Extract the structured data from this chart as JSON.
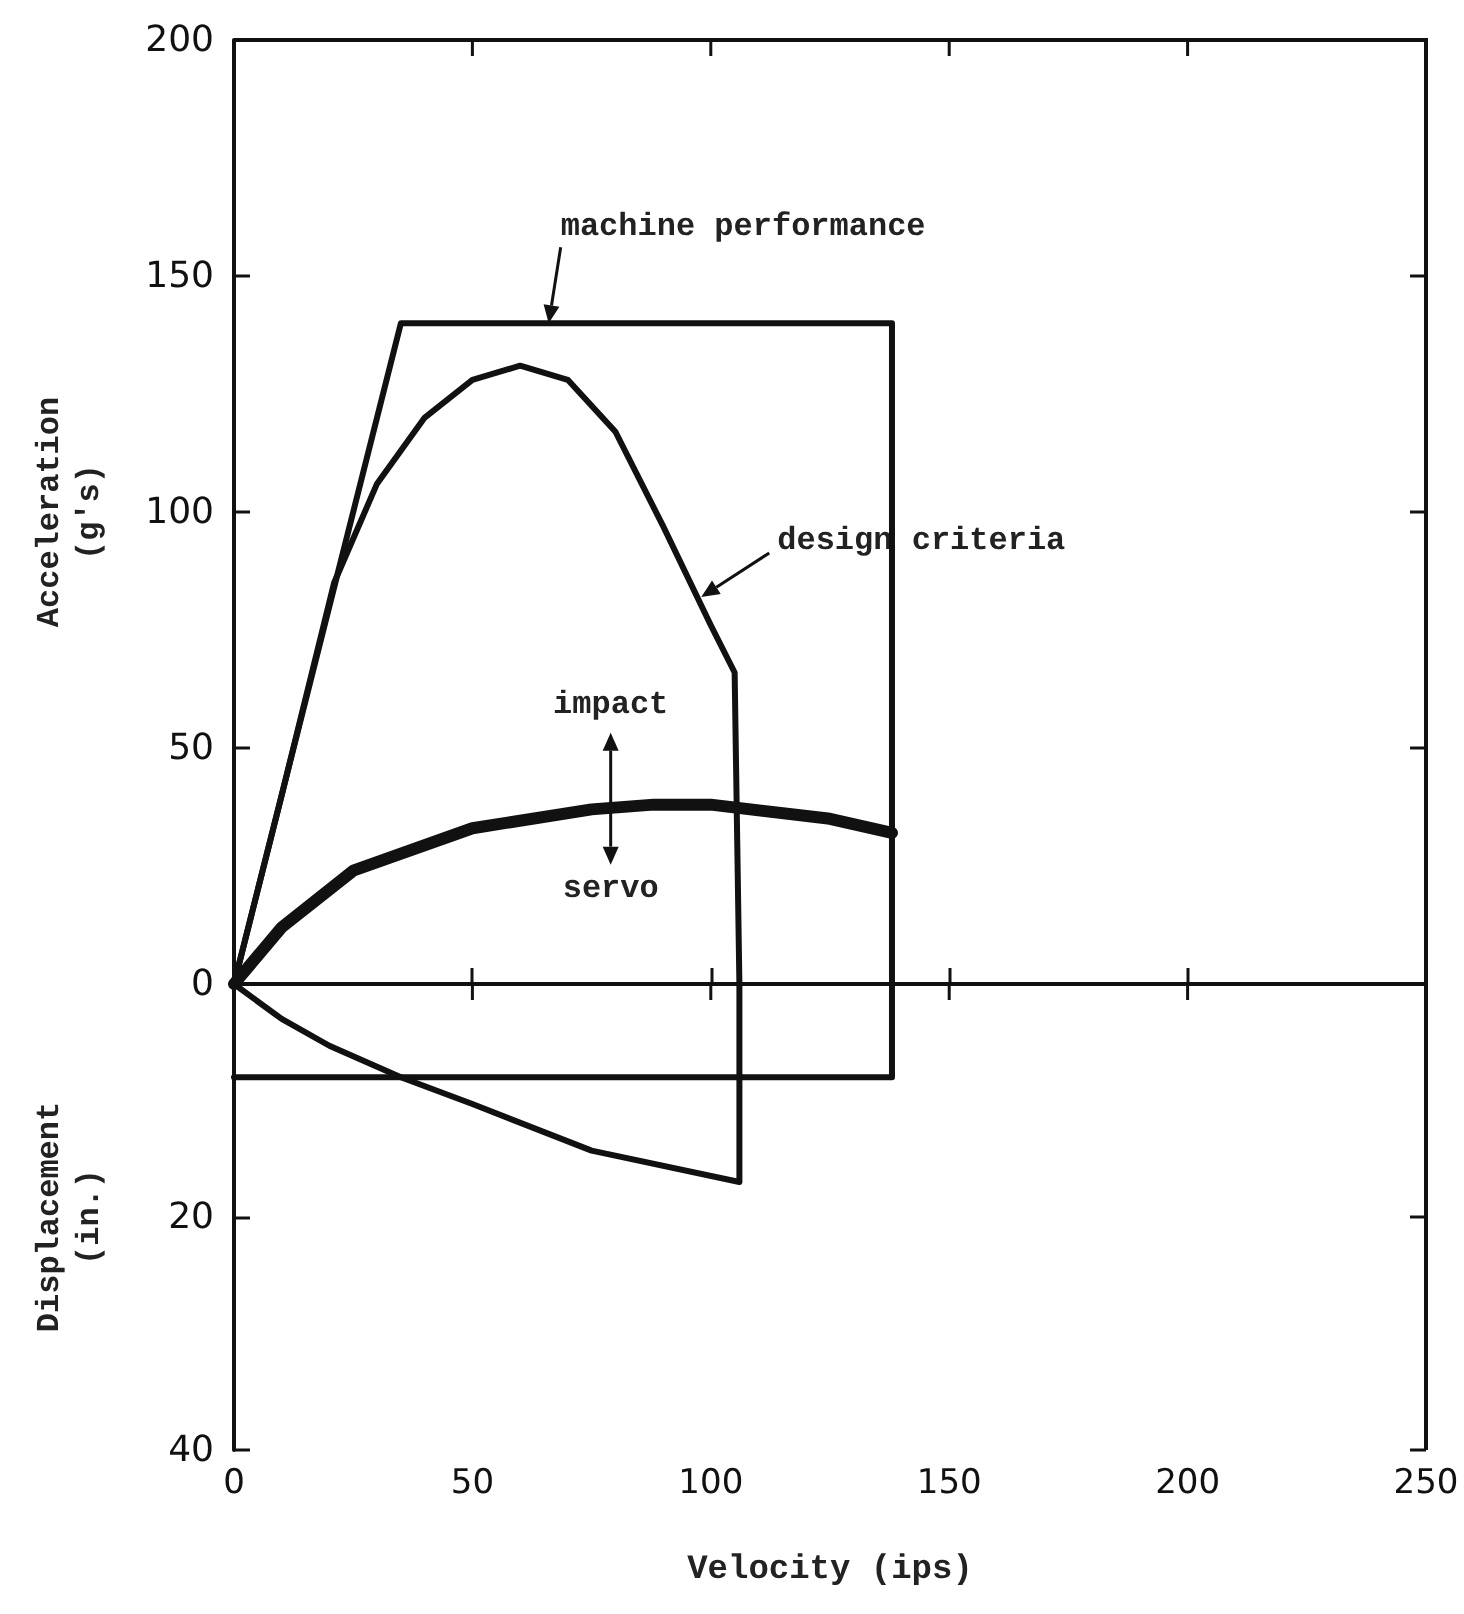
{
  "chart_data": [
    {
      "type": "line",
      "ylabel": "Acceleration (g's)",
      "xlim": [
        0,
        250
      ],
      "xticks": [
        0,
        50,
        100,
        150,
        200,
        250
      ],
      "ylim": [
        0,
        200
      ],
      "yticks": [
        0,
        50,
        100,
        150,
        200
      ],
      "tick_labels": "y",
      "marker": "none",
      "line_style": "solid",
      "series": [
        {
          "color": "#111111",
          "x": [
            0,
            35,
            138,
            138
          ],
          "values": [
            0,
            140,
            140,
            0
          ]
        },
        {
          "color": "#111111",
          "x": [
            0,
            10,
            21,
            30,
            40,
            50,
            60,
            70,
            80,
            90,
            100,
            105,
            106
          ],
          "values": [
            0,
            40,
            85,
            106,
            120,
            128,
            131,
            128,
            117,
            97,
            76,
            66,
            0
          ]
        },
        {
          "color": "#111111",
          "x": [
            0,
            10,
            25,
            50,
            75,
            88,
            100,
            125,
            138
          ],
          "values": [
            0,
            12,
            24,
            33,
            37,
            38,
            38,
            35,
            32
          ]
        }
      ],
      "annotations": [
        {
          "text": "machine performance",
          "x": 66,
          "y": 140
        },
        {
          "text": "design criteria",
          "x": 98,
          "y": 82
        },
        {
          "text": "impact",
          "x": 79,
          "y": 38
        },
        {
          "text": "servo",
          "x": 79,
          "y": 38
        }
      ]
    },
    {
      "type": "line",
      "xlabel": "Velocity (ips)",
      "ylabel": "Displacement (in.)",
      "xlim": [
        0,
        250
      ],
      "xticks": [
        0,
        50,
        100,
        150,
        200,
        250
      ],
      "ylim": [
        40,
        0
      ],
      "yticks": [
        {
          "value": 0,
          "label": null
        },
        20,
        40
      ],
      "marker": "none",
      "line_style": "solid",
      "series": [
        {
          "color": "#111111",
          "x": [
            138,
            138,
            0
          ],
          "values": [
            0,
            8,
            8
          ]
        },
        {
          "color": "#111111",
          "x": [
            0,
            10,
            20,
            35,
            50,
            75,
            106,
            106
          ],
          "values": [
            0,
            3,
            5.3,
            8,
            10.3,
            14.3,
            17,
            0
          ]
        }
      ]
    }
  ]
}
